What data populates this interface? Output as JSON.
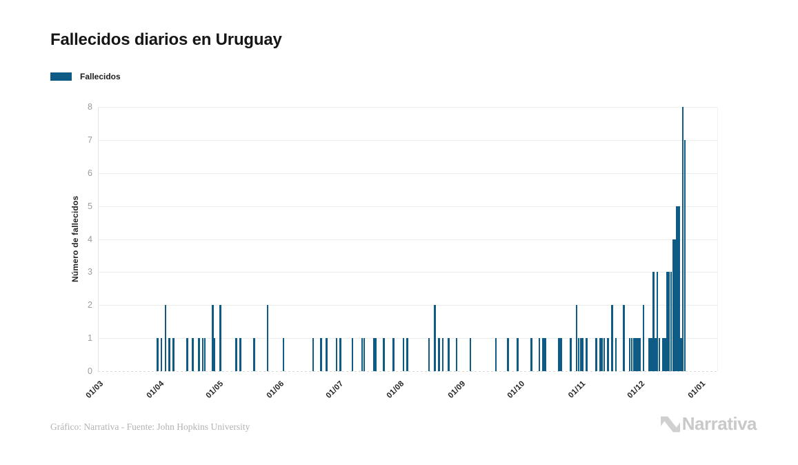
{
  "title": "Fallecidos diarios en Uruguay",
  "legend": {
    "label": "Fallecidos"
  },
  "footer": {
    "credit": "Gráfico: Narrativa - Fuente: John Hopkins University",
    "logo_text": "Narrativa"
  },
  "colors": {
    "bar": "#0e5c85",
    "title_text": "#161616",
    "y_tick_text": "#9b9b9b",
    "x_tick_text": "#262626",
    "gridline": "#ededed",
    "footer_text": "#b3b3b3",
    "logo": "#c9c9c9"
  },
  "chart_data": {
    "type": "bar",
    "title": "Fallecidos diarios en Uruguay",
    "series_name": "Fallecidos",
    "xlabel": "",
    "ylabel": "Número de fallecidos",
    "ylim": [
      0,
      8
    ],
    "yticks": [
      0,
      1,
      2,
      3,
      4,
      5,
      6,
      7,
      8
    ],
    "x_tick_labels": [
      "01/03",
      "01/04",
      "01/05",
      "01/06",
      "01/07",
      "01/08",
      "01/09",
      "01/10",
      "01/11",
      "01/12",
      "01/01"
    ],
    "grid": "horizontal",
    "legend_position": "top-left",
    "points": [
      {
        "date": "04/01",
        "value": 1
      },
      {
        "date": "04/03",
        "value": 1
      },
      {
        "date": "04/05",
        "value": 2
      },
      {
        "date": "04/07",
        "value": 1
      },
      {
        "date": "04/09",
        "value": 1
      },
      {
        "date": "04/16",
        "value": 1
      },
      {
        "date": "04/19",
        "value": 1
      },
      {
        "date": "04/22",
        "value": 1
      },
      {
        "date": "04/24",
        "value": 1
      },
      {
        "date": "04/25",
        "value": 1
      },
      {
        "date": "04/29",
        "value": 2
      },
      {
        "date": "04/30",
        "value": 1
      },
      {
        "date": "05/03",
        "value": 2
      },
      {
        "date": "05/11",
        "value": 1
      },
      {
        "date": "05/13",
        "value": 1
      },
      {
        "date": "05/20",
        "value": 1
      },
      {
        "date": "05/27",
        "value": 2
      },
      {
        "date": "06/04",
        "value": 1
      },
      {
        "date": "06/19",
        "value": 1
      },
      {
        "date": "06/23",
        "value": 1
      },
      {
        "date": "06/26",
        "value": 1
      },
      {
        "date": "07/01",
        "value": 1
      },
      {
        "date": "07/03",
        "value": 1
      },
      {
        "date": "07/09",
        "value": 1
      },
      {
        "date": "07/14",
        "value": 1
      },
      {
        "date": "07/15",
        "value": 1
      },
      {
        "date": "07/20",
        "value": 1
      },
      {
        "date": "07/21",
        "value": 1
      },
      {
        "date": "07/25",
        "value": 1
      },
      {
        "date": "07/30",
        "value": 1
      },
      {
        "date": "08/04",
        "value": 1
      },
      {
        "date": "08/06",
        "value": 1
      },
      {
        "date": "08/17",
        "value": 1
      },
      {
        "date": "08/20",
        "value": 2
      },
      {
        "date": "08/22",
        "value": 1
      },
      {
        "date": "08/24",
        "value": 1
      },
      {
        "date": "08/27",
        "value": 1
      },
      {
        "date": "08/31",
        "value": 1
      },
      {
        "date": "09/07",
        "value": 1
      },
      {
        "date": "09/20",
        "value": 1
      },
      {
        "date": "09/26",
        "value": 1
      },
      {
        "date": "10/01",
        "value": 1
      },
      {
        "date": "10/08",
        "value": 1
      },
      {
        "date": "10/12",
        "value": 1
      },
      {
        "date": "10/14",
        "value": 1
      },
      {
        "date": "10/15",
        "value": 1
      },
      {
        "date": "10/22",
        "value": 1
      },
      {
        "date": "10/23",
        "value": 1
      },
      {
        "date": "10/28",
        "value": 1
      },
      {
        "date": "10/31",
        "value": 2
      },
      {
        "date": "11/01",
        "value": 1
      },
      {
        "date": "11/02",
        "value": 1
      },
      {
        "date": "11/03",
        "value": 1
      },
      {
        "date": "11/05",
        "value": 1
      },
      {
        "date": "11/10",
        "value": 1
      },
      {
        "date": "11/12",
        "value": 1
      },
      {
        "date": "11/13",
        "value": 1
      },
      {
        "date": "11/14",
        "value": 1
      },
      {
        "date": "11/16",
        "value": 1
      },
      {
        "date": "11/18",
        "value": 2
      },
      {
        "date": "11/20",
        "value": 1
      },
      {
        "date": "11/24",
        "value": 2
      },
      {
        "date": "11/27",
        "value": 1
      },
      {
        "date": "11/28",
        "value": 1
      },
      {
        "date": "11/29",
        "value": 1
      },
      {
        "date": "11/30",
        "value": 1
      },
      {
        "date": "12/01",
        "value": 1
      },
      {
        "date": "12/02",
        "value": 1
      },
      {
        "date": "12/04",
        "value": 2
      },
      {
        "date": "12/07",
        "value": 1
      },
      {
        "date": "12/08",
        "value": 1
      },
      {
        "date": "12/09",
        "value": 3
      },
      {
        "date": "12/10",
        "value": 1
      },
      {
        "date": "12/11",
        "value": 3
      },
      {
        "date": "12/12",
        "value": 1
      },
      {
        "date": "12/14",
        "value": 1
      },
      {
        "date": "12/15",
        "value": 1
      },
      {
        "date": "12/16",
        "value": 3
      },
      {
        "date": "12/17",
        "value": 3
      },
      {
        "date": "12/18",
        "value": 3
      },
      {
        "date": "12/19",
        "value": 4
      },
      {
        "date": "12/20",
        "value": 4
      },
      {
        "date": "12/21",
        "value": 5
      },
      {
        "date": "12/22",
        "value": 5
      },
      {
        "date": "12/23",
        "value": 1
      },
      {
        "date": "12/24",
        "value": 8
      },
      {
        "date": "12/25",
        "value": 7
      }
    ]
  }
}
